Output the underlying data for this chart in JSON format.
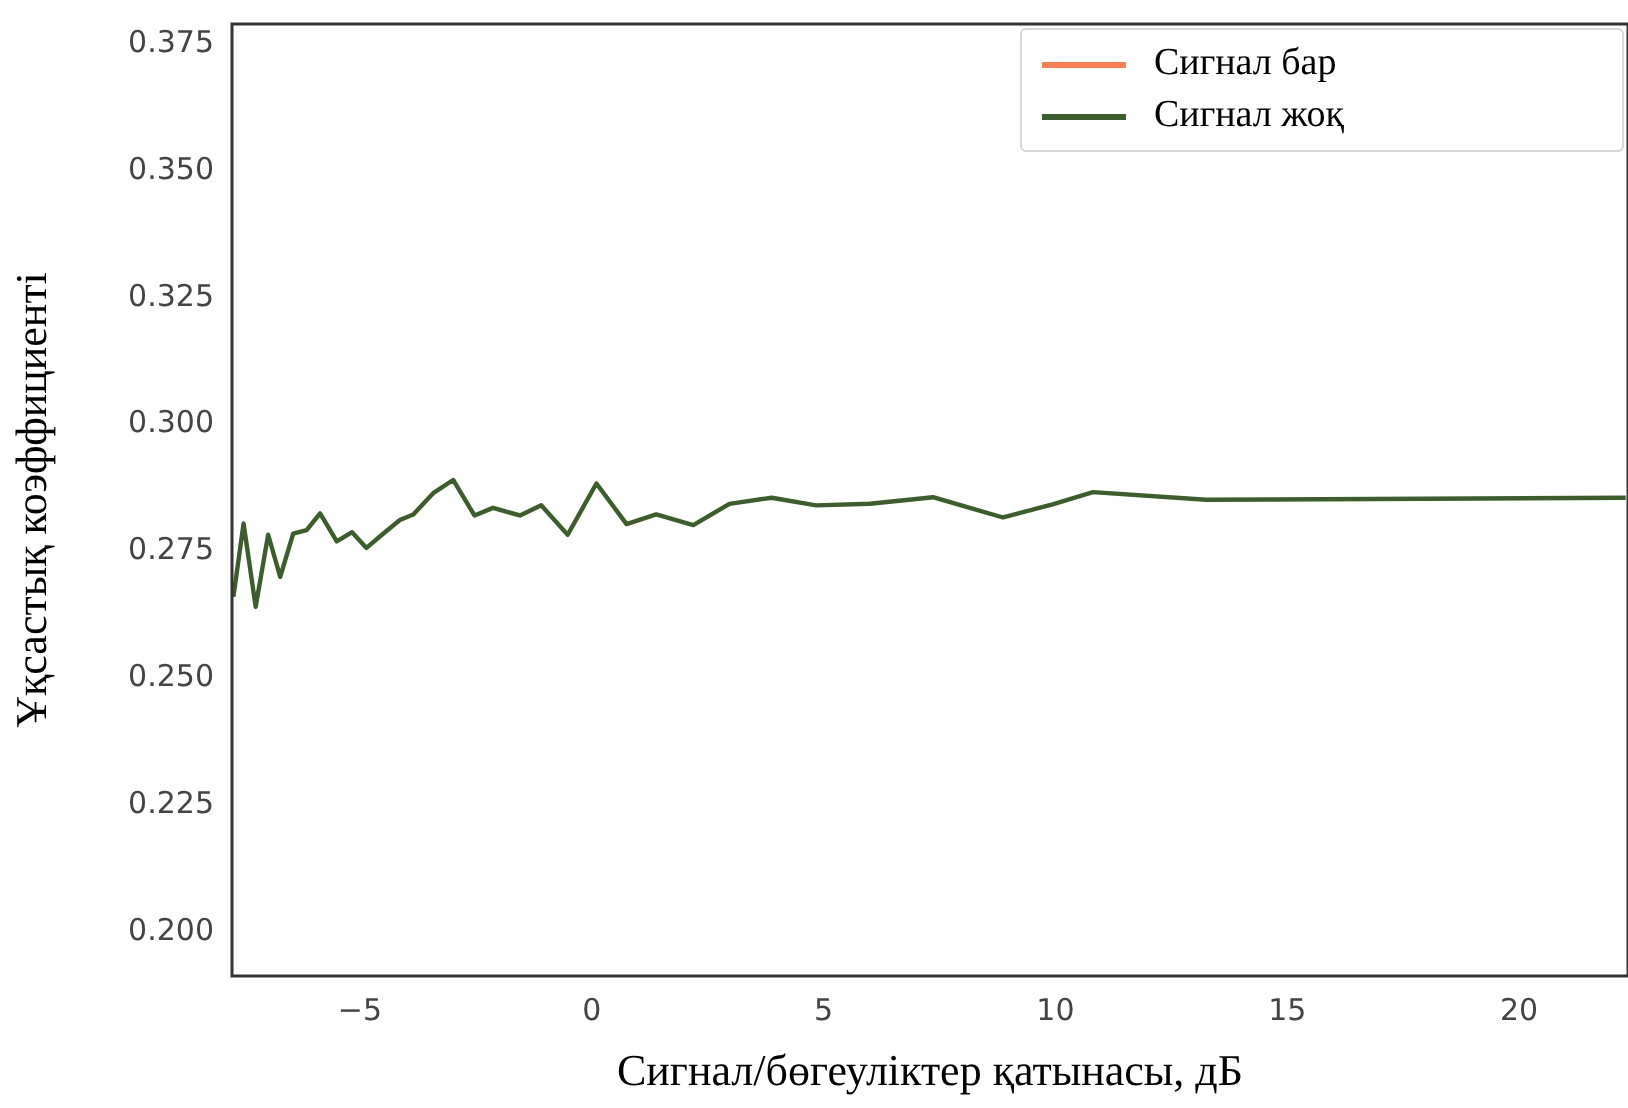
{
  "chart_data": {
    "type": "line",
    "xlabel": "Сигнал/бөгеуліктер қатынасы, дБ",
    "ylabel": "Ұқсастық коэффициенті",
    "x": [
      -7.73,
      -7.51,
      -7.25,
      -6.98,
      -6.72,
      -6.44,
      -6.15,
      -5.86,
      -5.5,
      -5.17,
      -4.86,
      -4.5,
      -4.14,
      -3.85,
      -3.42,
      -2.99,
      -2.53,
      -2.13,
      -1.55,
      -1.09,
      -0.52,
      0.1,
      0.75,
      1.39,
      2.19,
      2.97,
      3.88,
      4.84,
      6.0,
      7.36,
      8.87,
      9.94,
      10.81,
      13.25,
      22.3
    ],
    "series": [
      {
        "name": "Сигнал бар",
        "color": "#ff7f50",
        "values": [
          null,
          null,
          null,
          null,
          null,
          null,
          null,
          null,
          null,
          null,
          null,
          null,
          null,
          null,
          null,
          null,
          null,
          null,
          null,
          null,
          null,
          null,
          null,
          null,
          null,
          null,
          null,
          null,
          null,
          null,
          null,
          null,
          null,
          null,
          null
        ]
      },
      {
        "name": "Сигнал жоқ",
        "color": "#3b5e2b",
        "values": [
          0.2661,
          0.2805,
          0.2641,
          0.2783,
          0.27,
          0.2785,
          0.2792,
          0.2825,
          0.277,
          0.2788,
          0.2757,
          0.2785,
          0.2812,
          0.2823,
          0.2865,
          0.2891,
          0.2821,
          0.2836,
          0.2821,
          0.2841,
          0.2783,
          0.2884,
          0.2804,
          0.2823,
          0.2802,
          0.2844,
          0.2856,
          0.2841,
          0.2844,
          0.2857,
          0.2817,
          0.2843,
          0.2867,
          0.2852,
          0.2856
        ]
      }
    ],
    "xlim": [
      -7.76,
      22.35
    ],
    "xticks": [
      {
        "value": -5,
        "label": "−5"
      },
      0,
      5,
      10,
      15,
      20
    ],
    "ylim": [
      0.1913,
      0.379
    ],
    "yticks": [
      {
        "value": 0.2,
        "label": "0.200"
      },
      {
        "value": 0.225,
        "label": "0.225"
      },
      {
        "value": 0.25,
        "label": "0.250"
      },
      {
        "value": 0.275,
        "label": "0.275"
      },
      {
        "value": 0.3,
        "label": "0.300"
      },
      {
        "value": 0.325,
        "label": "0.325"
      },
      {
        "value": 0.35,
        "label": "0.350"
      },
      {
        "value": 0.375,
        "label": "0.375"
      }
    ],
    "legend": "top right",
    "marker": "none",
    "line_style": "solid"
  }
}
